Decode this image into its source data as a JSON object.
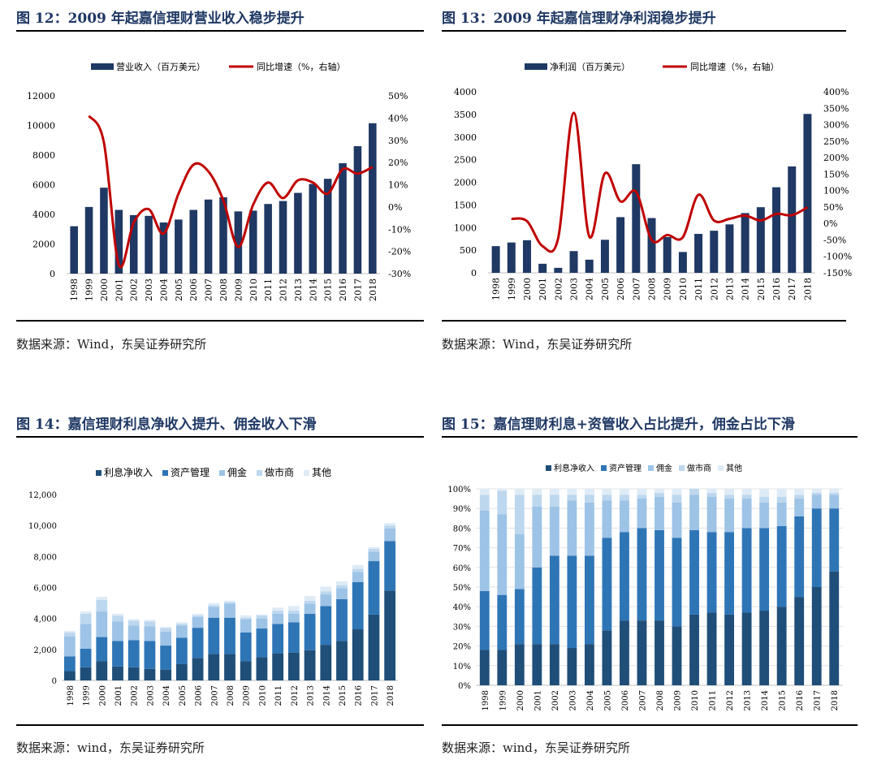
{
  "panels": {
    "p12": {
      "title": "图 12：2009 年起嘉信理财营业收入稳步提升",
      "source": "数据来源：Wind，东吴证券研究所"
    },
    "p13": {
      "title": "图 13：2009 年起嘉信理财净利润稳步提升",
      "source": "数据来源：Wind，东吴证券研究所"
    },
    "p14": {
      "title": "图 14：嘉信理财利息净收入提升、佣金收入下滑",
      "source": "数据来源：wind，东吴证券研究所"
    },
    "p15": {
      "title": "图 15：嘉信理财利息+资管收入占比提升，佣金占比下滑",
      "source": "数据来源：wind，东吴证券研究所"
    }
  },
  "chart_data": [
    {
      "id": "c12",
      "type": "bar",
      "title": "2009 年起嘉信理财营业收入稳步提升",
      "categories": [
        "1998",
        "1999",
        "2000",
        "2001",
        "2002",
        "2003",
        "2004",
        "2005",
        "2006",
        "2007",
        "2008",
        "2009",
        "2010",
        "2011",
        "2012",
        "2013",
        "2014",
        "2015",
        "2016",
        "2017",
        "2018"
      ],
      "series": [
        {
          "name": "营业收入（百万美元）",
          "type": "bar",
          "axis": "left",
          "color": "#1f3864",
          "values": [
            3200,
            4500,
            5800,
            4300,
            3950,
            3900,
            3450,
            3650,
            4300,
            5000,
            5150,
            4200,
            4250,
            4700,
            4900,
            5450,
            6050,
            6400,
            7450,
            8600,
            10150
          ]
        },
        {
          "name": "同比增速（%，右轴）",
          "type": "line",
          "axis": "right",
          "color": "#c00000",
          "values": [
            null,
            41,
            29,
            -26,
            -7,
            -1,
            -12,
            6,
            19,
            16,
            3,
            -18,
            1,
            11,
            4,
            12,
            11,
            6,
            17,
            15,
            18
          ]
        }
      ],
      "y_left": {
        "min": 0,
        "max": 12000,
        "ticks": [
          "0",
          "2000",
          "4000",
          "6000",
          "8000",
          "10000",
          "12000"
        ]
      },
      "y_right": {
        "min": -30,
        "max": 50,
        "ticks": [
          "-30%",
          "-20%",
          "-10%",
          "0%",
          "10%",
          "20%",
          "30%",
          "40%",
          "50%"
        ]
      }
    },
    {
      "id": "c13",
      "type": "bar",
      "title": "2009 年起嘉信理财净利润稳步提升",
      "categories": [
        "1998",
        "1999",
        "2000",
        "2001",
        "2002",
        "2003",
        "2004",
        "2005",
        "2006",
        "2007",
        "2008",
        "2009",
        "2010",
        "2011",
        "2012",
        "2013",
        "2014",
        "2015",
        "2016",
        "2017",
        "2018"
      ],
      "series": [
        {
          "name": "净利润（百万美元）",
          "type": "bar",
          "axis": "left",
          "color": "#1f3864",
          "values": [
            590,
            670,
            720,
            200,
            110,
            480,
            290,
            730,
            1230,
            2400,
            1210,
            790,
            460,
            860,
            930,
            1070,
            1320,
            1450,
            1890,
            2350,
            3510
          ]
        },
        {
          "name": "同比增速（%，右轴）",
          "type": "line",
          "axis": "right",
          "color": "#c00000",
          "values": [
            null,
            14,
            7,
            -69,
            -45,
            336,
            -40,
            152,
            67,
            96,
            -50,
            -35,
            -42,
            87,
            9,
            14,
            24,
            9,
            29,
            25,
            49
          ]
        }
      ],
      "y_left": {
        "min": 0,
        "max": 4000,
        "ticks": [
          "0",
          "500",
          "1000",
          "1500",
          "2000",
          "2500",
          "3000",
          "3500",
          "4000"
        ]
      },
      "y_right": {
        "min": -150,
        "max": 400,
        "ticks": [
          "-150%",
          "-100%",
          "-50%",
          "0%",
          "50%",
          "100%",
          "150%",
          "200%",
          "250%",
          "300%",
          "350%",
          "400%"
        ]
      }
    },
    {
      "id": "c14",
      "type": "bar",
      "stacked": true,
      "title": "嘉信理财利息净收入提升、佣金收入下滑",
      "categories": [
        "1998",
        "1999",
        "2000",
        "2001",
        "2002",
        "2003",
        "2004",
        "2005",
        "2006",
        "2007",
        "2008",
        "2009",
        "2010",
        "2011",
        "2012",
        "2013",
        "2014",
        "2015",
        "2016",
        "2017",
        "2018"
      ],
      "series": [
        {
          "name": "利息净收入",
          "color": "#1f4e79",
          "values": [
            600,
            850,
            1250,
            900,
            850,
            750,
            700,
            1050,
            1450,
            1700,
            1700,
            1250,
            1500,
            1750,
            1800,
            1950,
            2300,
            2550,
            3300,
            4250,
            5800
          ]
        },
        {
          "name": "资产管理",
          "color": "#2e75b6",
          "values": [
            950,
            1200,
            1550,
            1650,
            1750,
            1800,
            1550,
            1700,
            1950,
            2350,
            2350,
            1850,
            1850,
            1900,
            1950,
            2350,
            2500,
            2700,
            3050,
            3450,
            3200
          ]
        },
        {
          "name": "佣金",
          "color": "#9dc3e6",
          "values": [
            1300,
            1600,
            1650,
            1250,
            950,
            950,
            900,
            800,
            700,
            700,
            900,
            850,
            650,
            650,
            550,
            650,
            750,
            700,
            650,
            600,
            800
          ]
        },
        {
          "name": "做市商",
          "color": "#bdd7ee",
          "values": [
            250,
            650,
            750,
            380,
            300,
            300,
            230,
            100,
            100,
            100,
            100,
            100,
            200,
            200,
            200,
            200,
            200,
            200,
            200,
            200,
            200
          ]
        },
        {
          "name": "其他",
          "color": "#deebf7",
          "values": [
            100,
            150,
            200,
            120,
            100,
            100,
            70,
            100,
            100,
            150,
            100,
            150,
            50,
            200,
            300,
            300,
            300,
            250,
            250,
            100,
            150
          ]
        }
      ],
      "y": {
        "min": 0,
        "max": 12000,
        "ticks": [
          "0",
          "2,000",
          "4,000",
          "6,000",
          "8,000",
          "10,000",
          "12,000"
        ]
      }
    },
    {
      "id": "c15",
      "type": "bar",
      "stacked": true,
      "percent": true,
      "title": "嘉信理财利息+资管收入占比提升，佣金占比下滑",
      "categories": [
        "1998",
        "1999",
        "2000",
        "2001",
        "2002",
        "2003",
        "2004",
        "2005",
        "2006",
        "2007",
        "2008",
        "2009",
        "2010",
        "2011",
        "2012",
        "2013",
        "2014",
        "2015",
        "2016",
        "2017",
        "2018"
      ],
      "series": [
        {
          "name": "利息净收入",
          "color": "#1f4e79",
          "values": [
            18,
            18,
            21,
            21,
            21,
            19,
            21,
            28,
            33,
            33,
            33,
            30,
            36,
            37,
            36,
            37,
            38,
            40,
            45,
            50,
            58
          ]
        },
        {
          "name": "资产管理",
          "color": "#2e75b6",
          "values": [
            30,
            28,
            28,
            39,
            45,
            47,
            45,
            47,
            45,
            47,
            46,
            45,
            43,
            41,
            42,
            43,
            42,
            41,
            41,
            40,
            32
          ]
        },
        {
          "name": "佣金",
          "color": "#9dc3e6",
          "values": [
            41,
            41,
            28,
            31,
            25,
            28,
            27,
            19,
            16,
            15,
            17,
            18,
            18,
            18,
            17,
            15,
            13,
            12,
            9,
            7,
            7
          ]
        },
        {
          "name": "做市商",
          "color": "#bdd7ee",
          "values": [
            8,
            12,
            20,
            6,
            6,
            3,
            4,
            3,
            3,
            2,
            2,
            4,
            3,
            2,
            2,
            2,
            3,
            3,
            2,
            1,
            1
          ]
        },
        {
          "name": "其他",
          "color": "#deebf7",
          "values": [
            3,
            1,
            3,
            3,
            3,
            3,
            3,
            3,
            3,
            3,
            2,
            3,
            0,
            2,
            3,
            3,
            4,
            4,
            3,
            2,
            2
          ]
        }
      ],
      "y": {
        "min": 0,
        "max": 100,
        "ticks": [
          "0%",
          "10%",
          "20%",
          "30%",
          "40%",
          "50%",
          "60%",
          "70%",
          "80%",
          "90%",
          "100%"
        ]
      }
    }
  ]
}
